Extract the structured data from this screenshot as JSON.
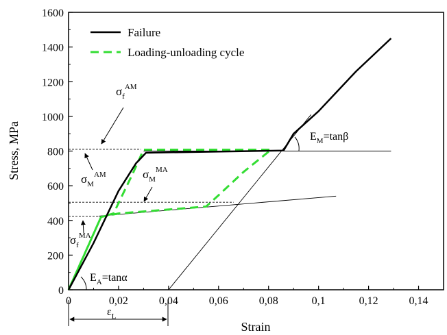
{
  "chart_data": {
    "type": "line",
    "xlabel": "Strain",
    "ylabel": "Stress, MPa",
    "xlim": [
      0,
      0.15
    ],
    "ylim": [
      0,
      1600
    ],
    "x_ticks": [
      0,
      0.02,
      0.04,
      0.06,
      0.08,
      0.1,
      0.12,
      0.14
    ],
    "x_tick_labels": [
      "0",
      "0,02",
      "0,04",
      "0,06",
      "0,08",
      "0,1",
      "0,12",
      "0,14"
    ],
    "y_ticks": [
      0,
      200,
      400,
      600,
      800,
      1000,
      1200,
      1400,
      1600
    ],
    "y_tick_labels": [
      "0",
      "200",
      "400",
      "600",
      "800",
      "1000",
      "1200",
      "1400",
      "1600"
    ],
    "legend_position": "top-left",
    "series": [
      {
        "name": "Failure",
        "style": "solid",
        "color": "#000000",
        "points": [
          [
            0,
            0
          ],
          [
            0.01,
            270
          ],
          [
            0.02,
            570
          ],
          [
            0.027,
            730
          ],
          [
            0.031,
            790
          ],
          [
            0.086,
            803
          ],
          [
            0.09,
            900
          ],
          [
            0.1,
            1030
          ],
          [
            0.115,
            1260
          ],
          [
            0.129,
            1450
          ]
        ]
      },
      {
        "name": "Loading-unloading cycle",
        "style": "dashed",
        "color": "#33dd33",
        "points": [
          [
            0,
            0
          ],
          [
            0.013,
            420
          ],
          [
            0.02,
            440
          ],
          [
            0.055,
            480
          ],
          [
            0.06,
            545
          ],
          [
            0.07,
            680
          ],
          [
            0.081,
            808
          ],
          [
            0.03,
            808
          ],
          [
            0.026,
            680
          ],
          [
            0.018,
            440
          ],
          [
            0.013,
            420
          ],
          [
            0.005,
            160
          ],
          [
            0,
            0
          ]
        ]
      }
    ],
    "reference_lines": {
      "solid": [
        {
          "from": [
            0.03,
            800
          ],
          "to": [
            0.129,
            800
          ]
        },
        {
          "from": [
            0.012,
            425
          ],
          "to": [
            0.107,
            540
          ]
        },
        {
          "from": [
            0.04,
            0
          ],
          "to": [
            0.097,
            1010
          ]
        }
      ],
      "dashed": [
        {
          "from": [
            0,
            810
          ],
          "to": [
            0.029,
            810
          ]
        },
        {
          "from": [
            0,
            505
          ],
          "to": [
            0.066,
            505
          ]
        },
        {
          "from": [
            0,
            425
          ],
          "to": [
            0.013,
            425
          ]
        }
      ]
    },
    "annotations": {
      "sigma_f_AM": {
        "base": "σ",
        "sub": "f",
        "sup": "AM"
      },
      "sigma_M_AM": {
        "base": "σ",
        "sub": "M",
        "sup": "AM"
      },
      "sigma_M_MA": {
        "base": "σ",
        "sub": "M",
        "sup": "MA"
      },
      "sigma_f_MA": {
        "base": "σ",
        "sub": "f",
        "sup": "MA"
      },
      "E_A": {
        "base": "E",
        "sub": "A",
        "rest": "=tanα"
      },
      "E_M": {
        "base": "E",
        "sub": "M",
        "rest": "=tanβ"
      },
      "epsilon_L": {
        "base": "ε",
        "sub": "L"
      }
    }
  }
}
